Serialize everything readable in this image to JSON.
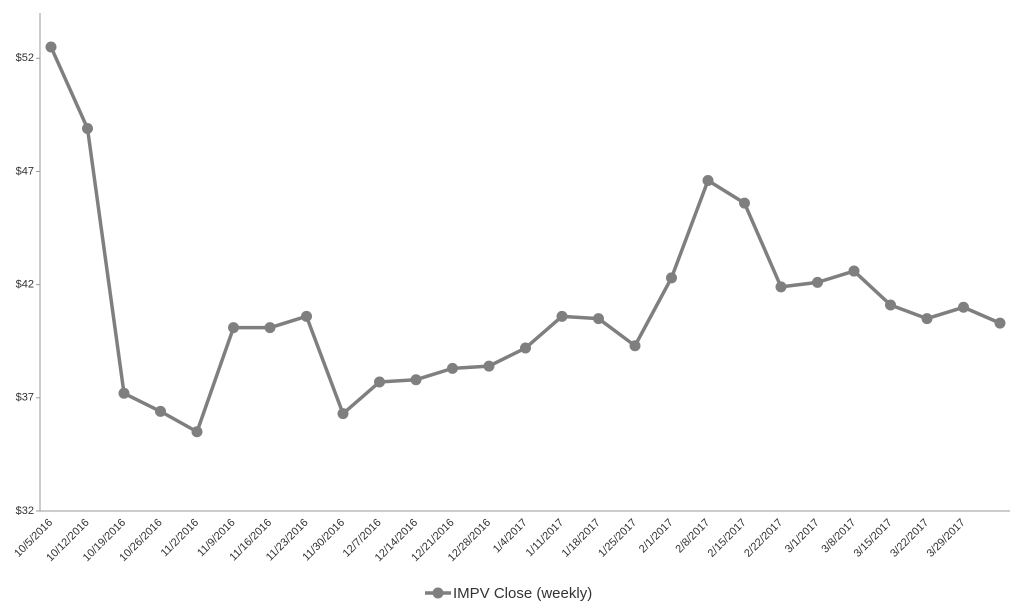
{
  "chart_data": {
    "type": "line",
    "categories": [
      "10/5/2016",
      "10/12/2016",
      "10/19/2016",
      "10/26/2016",
      "11/2/2016",
      "11/9/2016",
      "11/16/2016",
      "11/23/2016",
      "11/30/2016",
      "12/7/2016",
      "12/14/2016",
      "12/21/2016",
      "12/28/2016",
      "1/4/2017",
      "1/11/2017",
      "1/18/2017",
      "1/25/2017",
      "2/1/2017",
      "2/8/2017",
      "2/15/2017",
      "2/22/2017",
      "3/1/2017",
      "3/8/2017",
      "3/15/2017",
      "3/22/2017",
      "3/29/2017",
      null
    ],
    "series": [
      {
        "name": "IMPV Close (weekly)",
        "color": "#7f7f7f",
        "values": [
          52.5,
          48.9,
          37.2,
          36.4,
          35.5,
          40.1,
          40.1,
          40.6,
          36.3,
          37.7,
          37.8,
          38.3,
          38.4,
          39.2,
          40.6,
          40.5,
          39.3,
          42.3,
          46.6,
          45.6,
          41.9,
          42.1,
          42.6,
          41.1,
          40.5,
          41.0,
          40.3
        ]
      }
    ],
    "ylim": [
      32,
      54
    ],
    "yticks": [
      {
        "value": 32,
        "label": "$32"
      },
      {
        "value": 37,
        "label": "$37"
      },
      {
        "value": 42,
        "label": "$42"
      },
      {
        "value": 47,
        "label": "$47"
      },
      {
        "value": 52,
        "label": "$52"
      }
    ],
    "grid": false,
    "legend": "bottom"
  }
}
